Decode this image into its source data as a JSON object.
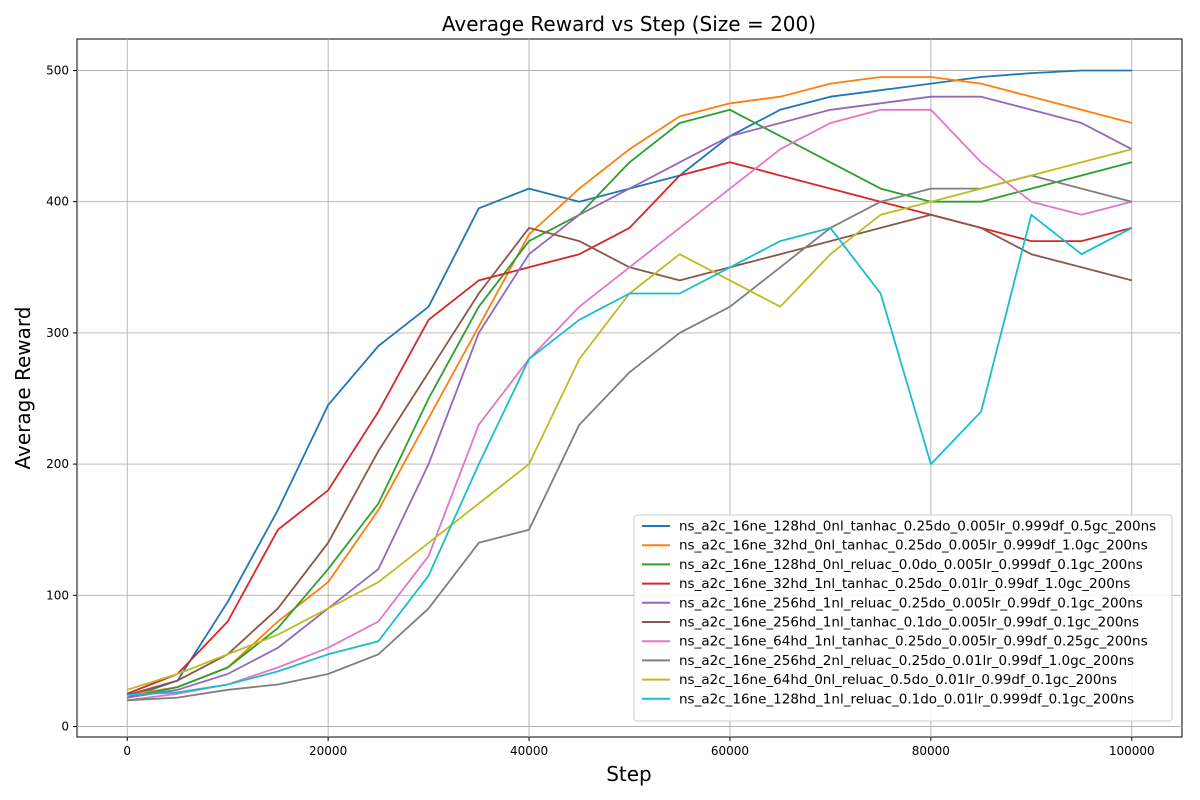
{
  "chart_data": {
    "type": "line",
    "title": "Average Reward vs Step (Size = 200)",
    "xlabel": "Step",
    "ylabel": "Average Reward",
    "xlim": [
      -5000,
      105000
    ],
    "ylim": [
      -8,
      524
    ],
    "xticks": [
      0,
      20000,
      40000,
      60000,
      80000,
      100000
    ],
    "yticks": [
      0,
      100,
      200,
      300,
      400,
      500
    ],
    "grid": true,
    "legend_position": "lower-right",
    "series": [
      {
        "name": "ns_a2c_16ne_128hd_0nl_tanhac_0.25do_0.005lr_0.999df_0.5gc_200ns",
        "color": "#1f77b4",
        "x": [
          0,
          5000,
          10000,
          15000,
          20000,
          25000,
          30000,
          35000,
          40000,
          45000,
          50000,
          55000,
          60000,
          65000,
          70000,
          75000,
          80000,
          85000,
          90000,
          95000,
          100000
        ],
        "y": [
          22,
          35,
          95,
          165,
          245,
          290,
          320,
          395,
          410,
          400,
          410,
          420,
          450,
          470,
          480,
          485,
          490,
          495,
          498,
          500,
          500
        ]
      },
      {
        "name": "ns_a2c_16ne_32hd_0nl_tanhac_0.25do_0.005lr_0.999df_1.0gc_200ns",
        "color": "#ff7f0e",
        "x": [
          0,
          5000,
          10000,
          15000,
          20000,
          25000,
          30000,
          35000,
          40000,
          45000,
          50000,
          55000,
          60000,
          65000,
          70000,
          75000,
          80000,
          85000,
          90000,
          95000,
          100000
        ],
        "y": [
          24,
          30,
          45,
          80,
          110,
          165,
          235,
          305,
          375,
          410,
          440,
          465,
          475,
          480,
          490,
          495,
          495,
          490,
          480,
          470,
          460
        ]
      },
      {
        "name": "ns_a2c_16ne_128hd_0nl_reluac_0.0do_0.005lr_0.999df_0.1gc_200ns",
        "color": "#2ca02c",
        "x": [
          0,
          5000,
          10000,
          15000,
          20000,
          25000,
          30000,
          35000,
          40000,
          45000,
          50000,
          55000,
          60000,
          65000,
          70000,
          75000,
          80000,
          85000,
          90000,
          95000,
          100000
        ],
        "y": [
          22,
          30,
          45,
          75,
          120,
          170,
          250,
          320,
          370,
          390,
          430,
          460,
          470,
          450,
          430,
          410,
          400,
          400,
          410,
          420,
          430
        ]
      },
      {
        "name": "ns_a2c_16ne_32hd_1nl_tanhac_0.25do_0.01lr_0.99df_1.0gc_200ns",
        "color": "#d62728",
        "x": [
          0,
          5000,
          10000,
          15000,
          20000,
          25000,
          30000,
          35000,
          40000,
          45000,
          50000,
          55000,
          60000,
          65000,
          70000,
          75000,
          80000,
          85000,
          90000,
          95000,
          100000
        ],
        "y": [
          25,
          40,
          80,
          150,
          180,
          240,
          310,
          340,
          350,
          360,
          380,
          420,
          430,
          420,
          410,
          400,
          390,
          380,
          370,
          370,
          380
        ]
      },
      {
        "name": "ns_a2c_16ne_256hd_1nl_reluac_0.25do_0.005lr_0.99df_0.1gc_200ns",
        "color": "#9467bd",
        "x": [
          0,
          5000,
          10000,
          15000,
          20000,
          25000,
          30000,
          35000,
          40000,
          45000,
          50000,
          55000,
          60000,
          65000,
          70000,
          75000,
          80000,
          85000,
          90000,
          95000,
          100000
        ],
        "y": [
          22,
          28,
          40,
          60,
          90,
          120,
          200,
          300,
          360,
          390,
          410,
          430,
          450,
          460,
          470,
          475,
          480,
          480,
          470,
          460,
          440
        ]
      },
      {
        "name": "ns_a2c_16ne_256hd_1nl_tanhac_0.1do_0.005lr_0.99df_0.1gc_200ns",
        "color": "#8c564b",
        "x": [
          0,
          5000,
          10000,
          15000,
          20000,
          25000,
          30000,
          35000,
          40000,
          45000,
          50000,
          55000,
          60000,
          65000,
          70000,
          75000,
          80000,
          85000,
          90000,
          95000,
          100000
        ],
        "y": [
          24,
          35,
          55,
          90,
          140,
          210,
          270,
          330,
          380,
          370,
          350,
          340,
          350,
          360,
          370,
          380,
          390,
          380,
          360,
          350,
          340
        ]
      },
      {
        "name": "ns_a2c_16ne_64hd_1nl_tanhac_0.25do_0.005lr_0.99df_0.25gc_200ns",
        "color": "#e377c2",
        "x": [
          0,
          5000,
          10000,
          15000,
          20000,
          25000,
          30000,
          35000,
          40000,
          45000,
          50000,
          55000,
          60000,
          65000,
          70000,
          75000,
          80000,
          85000,
          90000,
          95000,
          100000
        ],
        "y": [
          20,
          25,
          32,
          45,
          60,
          80,
          130,
          230,
          280,
          320,
          350,
          380,
          410,
          440,
          460,
          470,
          470,
          430,
          400,
          390,
          400
        ]
      },
      {
        "name": "ns_a2c_16ne_256hd_2nl_reluac_0.25do_0.01lr_0.99df_1.0gc_200ns",
        "color": "#7f7f7f",
        "x": [
          0,
          5000,
          10000,
          15000,
          20000,
          25000,
          30000,
          35000,
          40000,
          45000,
          50000,
          55000,
          60000,
          65000,
          70000,
          75000,
          80000,
          85000,
          90000,
          95000,
          100000
        ],
        "y": [
          20,
          22,
          28,
          32,
          40,
          55,
          90,
          140,
          150,
          230,
          270,
          300,
          320,
          350,
          380,
          400,
          410,
          410,
          420,
          410,
          400
        ]
      },
      {
        "name": "ns_a2c_16ne_64hd_0nl_reluac_0.5do_0.01lr_0.99df_0.1gc_200ns",
        "color": "#bcbd22",
        "x": [
          0,
          5000,
          10000,
          15000,
          20000,
          25000,
          30000,
          35000,
          40000,
          45000,
          50000,
          55000,
          60000,
          65000,
          70000,
          75000,
          80000,
          85000,
          90000,
          95000,
          100000
        ],
        "y": [
          28,
          40,
          55,
          70,
          90,
          110,
          140,
          170,
          200,
          280,
          330,
          360,
          340,
          320,
          360,
          390,
          400,
          410,
          420,
          430,
          440
        ]
      },
      {
        "name": "ns_a2c_16ne_128hd_1nl_reluac_0.1do_0.01lr_0.999df_0.1gc_200ns",
        "color": "#17becf",
        "x": [
          0,
          5000,
          10000,
          15000,
          20000,
          25000,
          30000,
          35000,
          40000,
          45000,
          50000,
          55000,
          60000,
          65000,
          70000,
          75000,
          80000,
          85000,
          90000,
          95000,
          100000
        ],
        "y": [
          24,
          26,
          32,
          42,
          55,
          65,
          115,
          200,
          280,
          310,
          330,
          330,
          350,
          370,
          380,
          330,
          200,
          240,
          390,
          360,
          380
        ]
      }
    ]
  }
}
